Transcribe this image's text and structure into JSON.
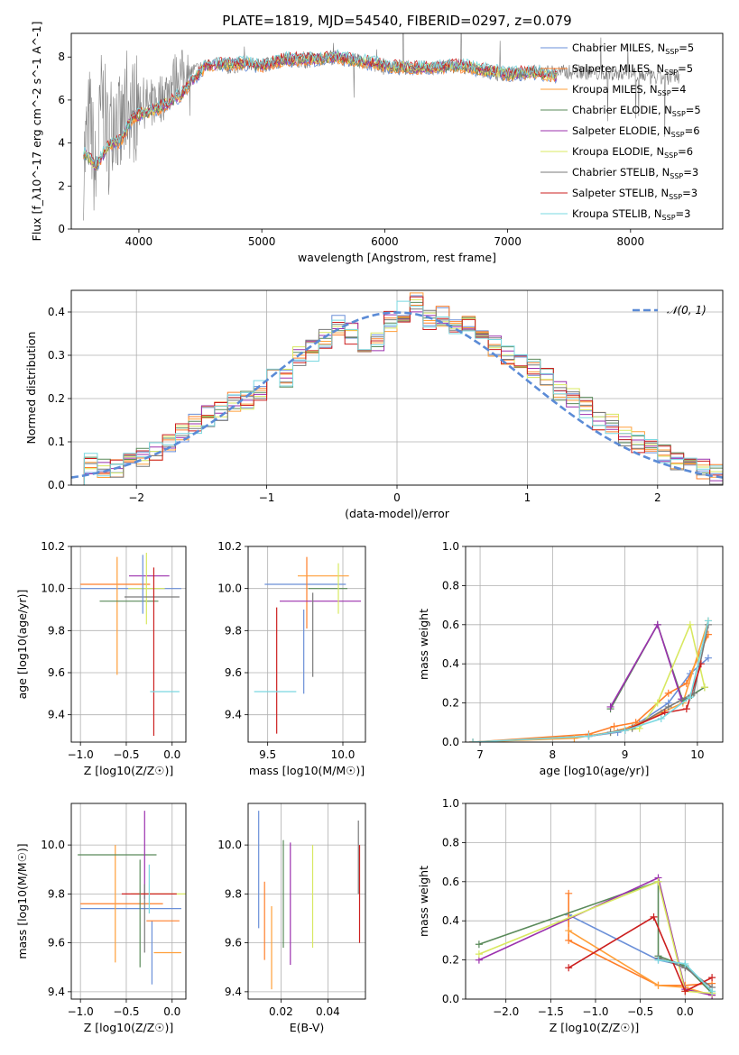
{
  "figure": {
    "title": "PLATE=1819, MJD=54540, FIBERID=0297, z=0.079"
  },
  "colors": {
    "models": [
      "#6a8fd8",
      "#ff7f2a",
      "#ff9f3a",
      "#5a8a5a",
      "#9b30ae",
      "#d8e860",
      "#7a7a7a",
      "#cc1f1f",
      "#7ad8e0"
    ],
    "gaussian": "#5b8bd6",
    "grid": "#b0b0b0",
    "spectrum": "#808080"
  },
  "chart_data": [
    {
      "id": "spectrum",
      "type": "line",
      "xlabel": "wavelength [Angstrom, rest frame]",
      "ylabel": "Flux [f_λ10^-17 erg cm^-2 s^-1 A^-1]",
      "xlim": [
        3450,
        8750
      ],
      "ylim": [
        0,
        9.1
      ],
      "xticks": [
        4000,
        5000,
        6000,
        7000,
        8000
      ],
      "yticks": [
        0,
        2,
        4,
        6,
        8
      ],
      "legend_position": "top-right",
      "legend": [
        {
          "imf": "Chabrier",
          "lib": "MILES",
          "n": 5
        },
        {
          "imf": "Salpeter",
          "lib": "MILES",
          "n": 5
        },
        {
          "imf": "Kroupa",
          "lib": "MILES",
          "n": 4
        },
        {
          "imf": "Chabrier",
          "lib": "ELODIE",
          "n": 5
        },
        {
          "imf": "Salpeter",
          "lib": "ELODIE",
          "n": 6
        },
        {
          "imf": "Kroupa",
          "lib": "ELODIE",
          "n": 6
        },
        {
          "imf": "Chabrier",
          "lib": "STELIB",
          "n": 3
        },
        {
          "imf": "Salpeter",
          "lib": "STELIB",
          "n": 3
        },
        {
          "imf": "Kroupa",
          "lib": "STELIB",
          "n": 3
        }
      ],
      "model_continuum": {
        "x": [
          3550,
          3650,
          3750,
          3850,
          3950,
          4050,
          4150,
          4250,
          4350,
          4450,
          4550,
          4700,
          4850,
          5000,
          5200,
          5400,
          5600,
          5800,
          6000,
          6200,
          6400,
          6600,
          6800,
          7000,
          7200,
          7400
        ],
        "y": [
          3.6,
          2.9,
          3.9,
          4.1,
          5.2,
          5.4,
          5.6,
          5.9,
          6.3,
          7.0,
          7.6,
          7.7,
          7.7,
          7.6,
          7.9,
          7.9,
          8.0,
          7.8,
          7.6,
          7.5,
          7.5,
          7.6,
          7.4,
          7.2,
          7.3,
          7.1
        ]
      },
      "observed_spectrum": {
        "x": [
          3550,
          3600,
          3650,
          3700,
          3750,
          3800,
          3850,
          3900,
          3950,
          4000,
          4100,
          4200,
          4300,
          4400,
          4500,
          4600,
          4700,
          4800,
          4900,
          5000,
          5200,
          5400,
          5600,
          5800,
          6000,
          6200,
          6400,
          6600,
          6800,
          7000,
          7200,
          7400,
          7600,
          7800,
          8000,
          8200,
          8400
        ],
        "y": [
          3.0,
          5.2,
          2.2,
          6.3,
          4.0,
          5.8,
          4.3,
          6.0,
          5.5,
          5.9,
          5.8,
          6.2,
          7.1,
          7.3,
          7.5,
          7.7,
          7.5,
          7.6,
          7.7,
          7.6,
          7.9,
          7.8,
          8.0,
          7.8,
          7.5,
          7.5,
          7.5,
          7.6,
          7.3,
          7.2,
          7.3,
          7.3,
          7.3,
          7.2,
          7.3,
          7.0,
          7.1
        ]
      }
    },
    {
      "id": "residual_histogram",
      "type": "bar",
      "xlabel": "(data-model)/error",
      "ylabel": "Normed distribution",
      "xlim": [
        -2.5,
        2.5
      ],
      "ylim": [
        0,
        0.45
      ],
      "xticks": [
        -2,
        -1,
        0,
        1,
        2
      ],
      "yticks": [
        0.0,
        0.1,
        0.2,
        0.3,
        0.4
      ],
      "grid": true,
      "legend_position": "top-right",
      "gaussian_label": "𝒩(0, 1)",
      "bin_width": 0.1,
      "bin_centers": [
        -2.45,
        -2.35,
        -2.25,
        -2.15,
        -2.05,
        -1.95,
        -1.85,
        -1.75,
        -1.65,
        -1.55,
        -1.45,
        -1.35,
        -1.25,
        -1.15,
        -1.05,
        -0.95,
        -0.85,
        -0.75,
        -0.65,
        -0.55,
        -0.45,
        -0.35,
        -0.25,
        -0.15,
        -0.05,
        0.05,
        0.15,
        0.25,
        0.35,
        0.45,
        0.55,
        0.65,
        0.75,
        0.85,
        0.95,
        1.05,
        1.15,
        1.25,
        1.35,
        1.45,
        1.55,
        1.65,
        1.75,
        1.85,
        1.95,
        2.05,
        2.15,
        2.25,
        2.35,
        2.45
      ],
      "representative_values": [
        0.025,
        0.05,
        0.037,
        0.043,
        0.05,
        0.062,
        0.08,
        0.1,
        0.122,
        0.14,
        0.16,
        0.17,
        0.195,
        0.2,
        0.22,
        0.27,
        0.25,
        0.3,
        0.31,
        0.34,
        0.37,
        0.35,
        0.32,
        0.33,
        0.38,
        0.4,
        0.42,
        0.38,
        0.39,
        0.37,
        0.38,
        0.35,
        0.32,
        0.3,
        0.28,
        0.27,
        0.25,
        0.22,
        0.2,
        0.18,
        0.15,
        0.14,
        0.11,
        0.1,
        0.09,
        0.07,
        0.06,
        0.05,
        0.035,
        0.025
      ]
    },
    {
      "id": "age_vs_Z",
      "type": "scatter",
      "xlabel": "Z [log10(Z/Z☉)]",
      "ylabel": "age [log10(age/yr)]",
      "xlim": [
        -1.1,
        0.15
      ],
      "ylim": [
        9.27,
        10.2
      ],
      "xticks": [
        -1.0,
        -0.5,
        0.0
      ],
      "yticks": [
        9.4,
        9.6,
        9.8,
        10.0,
        10.2
      ],
      "crosses": [
        {
          "x": -0.45,
          "xerr": 0.55,
          "y": 10.0,
          "yerr": 0.0
        },
        {
          "x": -0.62,
          "xerr": 0.38,
          "y": 10.02,
          "yerr": 0.0
        },
        {
          "x": -0.6,
          "xerr": 0.0,
          "y": 9.87,
          "yerr": 0.28
        },
        {
          "x": -0.47,
          "xerr": 0.32,
          "y": 9.94,
          "yerr": 0.0
        },
        {
          "x": -0.25,
          "xerr": 0.22,
          "y": 10.06,
          "yerr": 0.0
        },
        {
          "x": -0.28,
          "xerr": 0.2,
          "y": 10.0,
          "yerr": 0.17
        },
        {
          "x": -0.22,
          "xerr": 0.3,
          "y": 9.96,
          "yerr": 0.0
        },
        {
          "x": -0.2,
          "xerr": 0.0,
          "y": 9.7,
          "yerr": 0.4
        },
        {
          "x": -0.08,
          "xerr": 0.16,
          "y": 9.51,
          "yerr": 0.0
        },
        {
          "x": -0.32,
          "xerr": 0.0,
          "y": 10.02,
          "yerr": 0.14
        }
      ]
    },
    {
      "id": "age_vs_mass",
      "type": "scatter",
      "xlabel": "mass [log10(M/M☉)]",
      "ylabel": "",
      "xlim": [
        9.37,
        10.15
      ],
      "ylim": [
        9.27,
        10.2
      ],
      "xticks": [
        9.5,
        10.0
      ],
      "yticks": [
        9.4,
        9.6,
        9.8,
        10.0,
        10.2
      ],
      "crosses": [
        {
          "x": 9.75,
          "xerr": 0.27,
          "y": 10.02,
          "yerr": 0.0
        },
        {
          "x": 9.76,
          "xerr": 0.0,
          "y": 9.98,
          "yerr": 0.17
        },
        {
          "x": 9.87,
          "xerr": 0.17,
          "y": 10.06,
          "yerr": 0.0
        },
        {
          "x": 9.9,
          "xerr": 0.13,
          "y": 10.0,
          "yerr": 0.0
        },
        {
          "x": 9.85,
          "xerr": 0.27,
          "y": 9.94,
          "yerr": 0.0
        },
        {
          "x": 9.97,
          "xerr": 0.0,
          "y": 10.0,
          "yerr": 0.12
        },
        {
          "x": 9.8,
          "xerr": 0.0,
          "y": 9.78,
          "yerr": 0.2
        },
        {
          "x": 9.56,
          "xerr": 0.0,
          "y": 9.61,
          "yerr": 0.3
        },
        {
          "x": 9.55,
          "xerr": 0.14,
          "y": 9.51,
          "yerr": 0.0
        },
        {
          "x": 9.74,
          "xerr": 0.0,
          "y": 9.7,
          "yerr": 0.2
        }
      ]
    },
    {
      "id": "mass_weight_vs_age",
      "type": "line",
      "xlabel": "age [log10(age/yr)]",
      "ylabel": "mass weight",
      "xlim": [
        6.8,
        10.35
      ],
      "ylim": [
        0.0,
        1.0
      ],
      "xticks": [
        7,
        8,
        9,
        10
      ],
      "yticks": [
        0.0,
        0.2,
        0.4,
        0.6,
        0.8,
        1.0
      ],
      "grid": true,
      "series": [
        {
          "x": [
            6.9,
            8.5,
            8.9,
            9.2,
            9.6,
            9.9,
            10.15
          ],
          "y": [
            0.0,
            0.03,
            0.05,
            0.1,
            0.2,
            0.35,
            0.43
          ]
        },
        {
          "x": [
            6.9,
            8.5,
            8.85,
            9.15,
            9.6,
            9.85,
            10.15
          ],
          "y": [
            0.0,
            0.04,
            0.08,
            0.1,
            0.25,
            0.3,
            0.55
          ]
        },
        {
          "x": [
            6.9,
            8.3,
            8.8,
            9.1,
            9.5,
            9.8,
            10.15
          ],
          "y": [
            0.0,
            0.02,
            0.05,
            0.08,
            0.15,
            0.2,
            0.62
          ]
        },
        {
          "x": [
            8.8,
            9.45,
            9.8,
            9.92,
            10.1
          ],
          "y": [
            0.17,
            0.6,
            0.21,
            0.24,
            0.28
          ]
        },
        {
          "x": [
            8.8,
            9.45,
            9.78
          ],
          "y": [
            0.18,
            0.6,
            0.22
          ]
        },
        {
          "x": [
            8.8,
            9.2,
            9.45,
            9.9,
            10.1
          ],
          "y": [
            0.05,
            0.07,
            0.2,
            0.6,
            0.28
          ]
        },
        {
          "x": [
            8.8,
            9.1,
            9.6,
            9.95,
            10.15
          ],
          "y": [
            0.05,
            0.07,
            0.18,
            0.25,
            0.6
          ]
        },
        {
          "x": [
            8.5,
            9.0,
            9.55,
            9.85,
            10.05
          ],
          "y": [
            0.03,
            0.06,
            0.15,
            0.17,
            0.4
          ]
        },
        {
          "x": [
            6.9,
            8.5,
            9.0,
            9.5,
            9.9,
            10.15
          ],
          "y": [
            0.0,
            0.03,
            0.06,
            0.12,
            0.23,
            0.62
          ]
        }
      ]
    },
    {
      "id": "mass_vs_Z",
      "type": "scatter",
      "xlabel": "Z [log10(Z/Z☉)]",
      "ylabel": "mass [log10(M/M☉)]",
      "xlim": [
        -1.1,
        0.15
      ],
      "ylim": [
        9.37,
        10.17
      ],
      "xticks": [
        -1.0,
        -0.5,
        0.0
      ],
      "yticks": [
        9.4,
        9.6,
        9.8,
        10.0
      ],
      "crosses": [
        {
          "x": -0.45,
          "xerr": 0.55,
          "y": 9.74,
          "yerr": 0.0
        },
        {
          "x": -0.55,
          "xerr": 0.45,
          "y": 9.76,
          "yerr": 0.0
        },
        {
          "x": -0.62,
          "xerr": 0.0,
          "y": 9.76,
          "yerr": 0.24
        },
        {
          "x": -0.6,
          "xerr": 0.43,
          "y": 9.96,
          "yerr": 0.0
        },
        {
          "x": -0.3,
          "xerr": 0.0,
          "y": 9.96,
          "yerr": 0.18
        },
        {
          "x": -0.15,
          "xerr": 0.3,
          "y": 9.8,
          "yerr": 0.0
        },
        {
          "x": -0.3,
          "xerr": 0.0,
          "y": 9.7,
          "yerr": 0.14
        },
        {
          "x": -0.25,
          "xerr": 0.3,
          "y": 9.8,
          "yerr": 0.0
        },
        {
          "x": -0.25,
          "xerr": 0.0,
          "y": 9.82,
          "yerr": 0.1
        },
        {
          "x": -0.22,
          "xerr": 0.0,
          "y": 9.56,
          "yerr": 0.13
        },
        {
          "x": -0.1,
          "xerr": 0.18,
          "y": 9.69,
          "yerr": 0.0
        },
        {
          "x": -0.05,
          "xerr": 0.15,
          "y": 9.56,
          "yerr": 0.0
        },
        {
          "x": -0.35,
          "xerr": 0.0,
          "y": 9.72,
          "yerr": 0.22
        }
      ]
    },
    {
      "id": "mass_vs_ebv",
      "type": "scatter",
      "xlabel": "E(B-V)",
      "ylabel": "",
      "xlim": [
        0.006,
        0.056
      ],
      "ylim": [
        9.37,
        10.17
      ],
      "xticks": [
        0.02,
        0.04
      ],
      "yticks": [
        9.4,
        9.6,
        9.8,
        10.0
      ],
      "bars": [
        {
          "x": 0.0105,
          "y": 9.9,
          "yerr": 0.24
        },
        {
          "x": 0.013,
          "y": 9.69,
          "yerr": 0.16
        },
        {
          "x": 0.016,
          "y": 9.58,
          "yerr": 0.17
        },
        {
          "x": 0.021,
          "y": 9.8,
          "yerr": 0.22
        },
        {
          "x": 0.024,
          "y": 9.76,
          "yerr": 0.25
        },
        {
          "x": 0.0335,
          "y": 9.79,
          "yerr": 0.21
        },
        {
          "x": 0.053,
          "y": 9.95,
          "yerr": 0.15
        },
        {
          "x": 0.0535,
          "y": 9.8,
          "yerr": 0.2
        }
      ]
    },
    {
      "id": "mass_weight_vs_Z",
      "type": "line",
      "xlabel": "Z [log10(Z/Z☉)]",
      "ylabel": "mass weight",
      "xlim": [
        -2.45,
        0.42
      ],
      "ylim": [
        0.0,
        1.0
      ],
      "xticks": [
        -2.0,
        -1.5,
        -1.0,
        -0.5,
        0.0
      ],
      "yticks": [
        0.0,
        0.2,
        0.4,
        0.6,
        0.8,
        1.0
      ],
      "grid": true,
      "series": [
        {
          "x": [
            -1.3,
            -0.3,
            0.0,
            0.3
          ],
          "y": [
            0.43,
            0.2,
            0.17,
            0.03
          ]
        },
        {
          "x": [
            -1.3,
            -1.3,
            -0.3,
            0.0,
            0.3
          ],
          "y": [
            0.54,
            0.3,
            0.07,
            0.07,
            0.08
          ]
        },
        {
          "x": [
            -1.3,
            -0.3,
            0.0,
            0.3
          ],
          "y": [
            0.35,
            0.07,
            0.06,
            0.02
          ]
        },
        {
          "x": [
            -2.3,
            -0.3,
            -0.3,
            0.0,
            0.3
          ],
          "y": [
            0.28,
            0.6,
            0.22,
            0.17,
            0.03
          ]
        },
        {
          "x": [
            -2.3,
            -0.3,
            0.0,
            0.3
          ],
          "y": [
            0.2,
            0.62,
            0.05,
            0.02
          ]
        },
        {
          "x": [
            -2.3,
            -0.3,
            0.0,
            0.3
          ],
          "y": [
            0.23,
            0.6,
            0.04,
            0.03
          ]
        },
        {
          "x": [
            -0.3,
            0.0,
            0.3
          ],
          "y": [
            0.21,
            0.16,
            0.06
          ]
        },
        {
          "x": [
            -1.3,
            -0.35,
            0.0,
            0.3
          ],
          "y": [
            0.16,
            0.42,
            0.04,
            0.11
          ]
        },
        {
          "x": [
            -0.3,
            0.0,
            0.3
          ],
          "y": [
            0.2,
            0.18,
            0.04
          ]
        }
      ]
    }
  ]
}
